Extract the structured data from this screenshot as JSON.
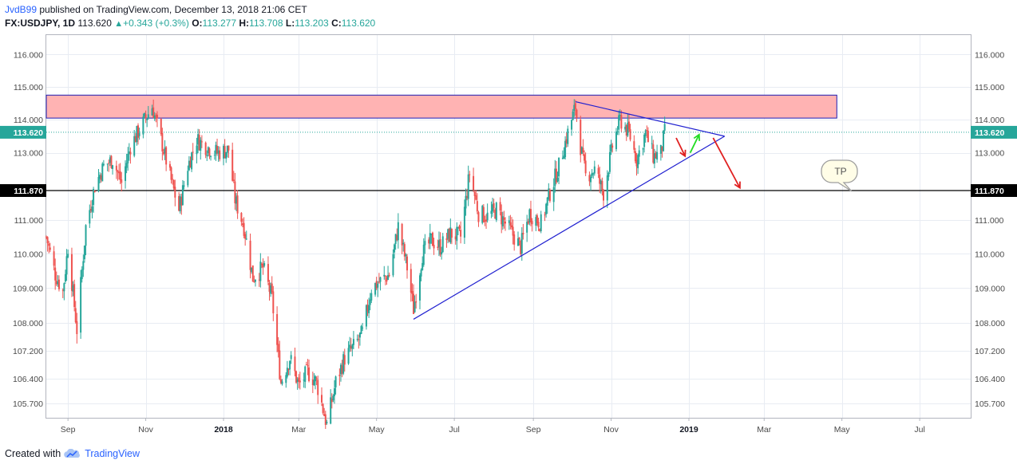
{
  "header": {
    "author": "JvdB99",
    "published": "published on TradingView.com, December 13, 2018 21:06 CET",
    "symbol": "FX:USDJPY, 1D",
    "last": "113.620",
    "change_arrow": "▲",
    "change": "+0.343 (+0.3%)",
    "o_label": "O:",
    "o": "113.277",
    "h_label": "H:",
    "h": "113.708",
    "l_label": "L:",
    "l": "113.203",
    "c_label": "C:",
    "c": "113.620"
  },
  "footer": {
    "created_with": "Created with",
    "brand": "TradingView",
    "logo_icon": "tradingview-cloud-icon"
  },
  "colors": {
    "up": "#26a69a",
    "down": "#ef5350",
    "zone_fill": "#ffb3b3",
    "zone_border": "#1e1eb4",
    "trendline": "#2020d0",
    "price_line": "#26a69a",
    "arrow_down": "#e02020",
    "arrow_up": "#22dd22",
    "grid": "#e8ecf3"
  },
  "chart_data": {
    "type": "candlestick",
    "symbol": "FX:USDJPY",
    "interval": "1D",
    "x_ticks": [
      "Sep",
      "Nov",
      "2018",
      "Mar",
      "May",
      "Jul",
      "Sep",
      "Nov",
      "2019",
      "Mar",
      "May",
      "Jul"
    ],
    "x_range": [
      "2017-08-15",
      "2019-08-10"
    ],
    "y_range": [
      105.3,
      116.6
    ],
    "y_scale": "log",
    "y_ticks": [
      "116.000",
      "115.000",
      "114.000",
      "113.000",
      "111.000",
      "110.000",
      "109.000",
      "108.000",
      "107.200",
      "106.400",
      "105.700"
    ],
    "grid": true,
    "last_price_label": "113.620",
    "last_price": 113.62,
    "horizontal_line_label": "111.870",
    "horizontal_line": 111.87,
    "price_path": [
      [
        "2017-08-15",
        110.5
      ],
      [
        "2017-08-22",
        109.4
      ],
      [
        "2017-08-28",
        108.9
      ],
      [
        "2017-09-01",
        110.2
      ],
      [
        "2017-09-08",
        107.8
      ],
      [
        "2017-09-15",
        110.8
      ],
      [
        "2017-09-22",
        112.0
      ],
      [
        "2017-09-29",
        112.6
      ],
      [
        "2017-10-06",
        112.8
      ],
      [
        "2017-10-13",
        112.1
      ],
      [
        "2017-10-20",
        113.2
      ],
      [
        "2017-10-27",
        113.7
      ],
      [
        "2017-11-06",
        114.4
      ],
      [
        "2017-11-13",
        113.4
      ],
      [
        "2017-11-20",
        112.3
      ],
      [
        "2017-11-27",
        111.3
      ],
      [
        "2017-12-04",
        112.6
      ],
      [
        "2017-12-11",
        113.4
      ],
      [
        "2017-12-18",
        113.2
      ],
      [
        "2017-12-27",
        113.0
      ],
      [
        "2018-01-05",
        113.1
      ],
      [
        "2018-01-10",
        111.6
      ],
      [
        "2018-01-17",
        110.8
      ],
      [
        "2018-01-24",
        109.3
      ],
      [
        "2018-02-01",
        109.6
      ],
      [
        "2018-02-08",
        108.7
      ],
      [
        "2018-02-15",
        106.3
      ],
      [
        "2018-02-22",
        107.0
      ],
      [
        "2018-03-01",
        106.2
      ],
      [
        "2018-03-08",
        106.6
      ],
      [
        "2018-03-15",
        106.3
      ],
      [
        "2018-03-23",
        105.1
      ],
      [
        "2018-03-30",
        106.3
      ],
      [
        "2018-04-06",
        107.0
      ],
      [
        "2018-04-13",
        107.3
      ],
      [
        "2018-04-20",
        107.7
      ],
      [
        "2018-04-27",
        109.0
      ],
      [
        "2018-05-04",
        109.2
      ],
      [
        "2018-05-11",
        109.4
      ],
      [
        "2018-05-18",
        110.8
      ],
      [
        "2018-05-25",
        109.6
      ],
      [
        "2018-05-30",
        108.4
      ],
      [
        "2018-06-06",
        110.0
      ],
      [
        "2018-06-13",
        110.4
      ],
      [
        "2018-06-20",
        110.2
      ],
      [
        "2018-06-28",
        110.6
      ],
      [
        "2018-07-06",
        110.5
      ],
      [
        "2018-07-13",
        112.4
      ],
      [
        "2018-07-20",
        111.2
      ],
      [
        "2018-07-27",
        111.1
      ],
      [
        "2018-08-03",
        111.3
      ],
      [
        "2018-08-10",
        110.9
      ],
      [
        "2018-08-17",
        110.5
      ],
      [
        "2018-08-22",
        110.2
      ],
      [
        "2018-08-29",
        111.2
      ],
      [
        "2018-09-07",
        110.9
      ],
      [
        "2018-09-14",
        111.8
      ],
      [
        "2018-09-21",
        112.6
      ],
      [
        "2018-09-28",
        113.6
      ],
      [
        "2018-10-04",
        114.4
      ],
      [
        "2018-10-08",
        113.2
      ],
      [
        "2018-10-12",
        112.3
      ],
      [
        "2018-10-19",
        112.5
      ],
      [
        "2018-10-26",
        111.8
      ],
      [
        "2018-11-02",
        113.2
      ],
      [
        "2018-11-08",
        114.0
      ],
      [
        "2018-11-15",
        113.6
      ],
      [
        "2018-11-21",
        112.8
      ],
      [
        "2018-11-28",
        113.6
      ],
      [
        "2018-12-04",
        112.9
      ],
      [
        "2018-12-10",
        113.0
      ],
      [
        "2018-12-13",
        113.62
      ]
    ],
    "annotations": {
      "resistance_zone": {
        "from": "2017-08-15",
        "to": "2019-04-27",
        "low": 114.05,
        "high": 114.75
      },
      "triangle_lines": [
        {
          "from": [
            "2018-05-30",
            108.1
          ],
          "to": [
            "2019-01-29",
            113.5
          ]
        },
        {
          "from": [
            "2018-10-04",
            114.55
          ],
          "to": [
            "2019-01-29",
            113.5
          ]
        }
      ],
      "tp_label": "TP",
      "arrows": [
        {
          "color": "red",
          "from": [
            "2018-12-22",
            113.45
          ],
          "to": [
            "2018-12-29",
            112.9
          ]
        },
        {
          "color": "green",
          "from": [
            "2019-01-02",
            113.0
          ],
          "to": [
            "2019-01-09",
            113.55
          ]
        },
        {
          "color": "red",
          "from": [
            "2019-01-20",
            113.45
          ],
          "to": [
            "2019-02-10",
            111.95
          ]
        }
      ]
    }
  }
}
